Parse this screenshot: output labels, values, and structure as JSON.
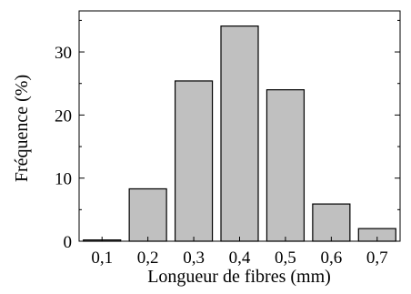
{
  "chart_data": {
    "type": "bar",
    "categories": [
      "0,1",
      "0,2",
      "0,3",
      "0,4",
      "0,5",
      "0,6",
      "0,7"
    ],
    "values": [
      0.2,
      8.3,
      25.4,
      34.1,
      24.0,
      5.9,
      2.0
    ],
    "xlabel": "Longueur de fibres (mm)",
    "ylabel": "Fréquence (%)",
    "yticks": [
      "0",
      "10",
      "20",
      "30"
    ],
    "ylim": [
      0,
      36.5
    ],
    "grid": false,
    "bar_color": "#c0c0c0",
    "edge_color": "#000000"
  }
}
